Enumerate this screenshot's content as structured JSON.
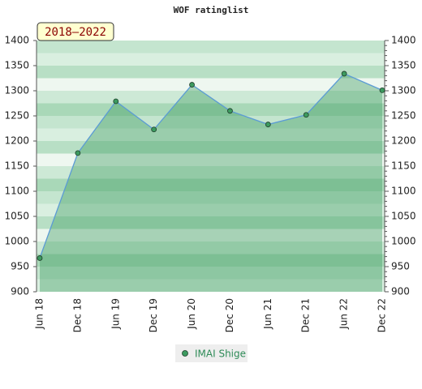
{
  "chart_data": {
    "type": "line",
    "title": "WOF ratinglist",
    "badge": "2018–2022",
    "categories": [
      "Jun 18",
      "Dec 18",
      "Jun 19",
      "Dec 19",
      "Jun 20",
      "Dec 20",
      "Jun 21",
      "Dec 21",
      "Jun 22",
      "Dec 22"
    ],
    "series": [
      {
        "name": "IMAI Shige",
        "color": "#5b9bd5",
        "marker_color": "#3c9a5f",
        "values": [
          967,
          1176,
          1279,
          1223,
          1312,
          1260,
          1233,
          1252,
          1334,
          1301
        ]
      }
    ],
    "ylim": [
      900,
      1400
    ],
    "yticks": [
      900,
      950,
      1000,
      1050,
      1100,
      1150,
      1200,
      1250,
      1300,
      1350,
      1400
    ],
    "y2lim": [
      900,
      1400
    ],
    "y2ticks": [
      900,
      950,
      1000,
      1050,
      1100,
      1150,
      1200,
      1250,
      1300,
      1350,
      1400
    ],
    "area_fill": true
  }
}
